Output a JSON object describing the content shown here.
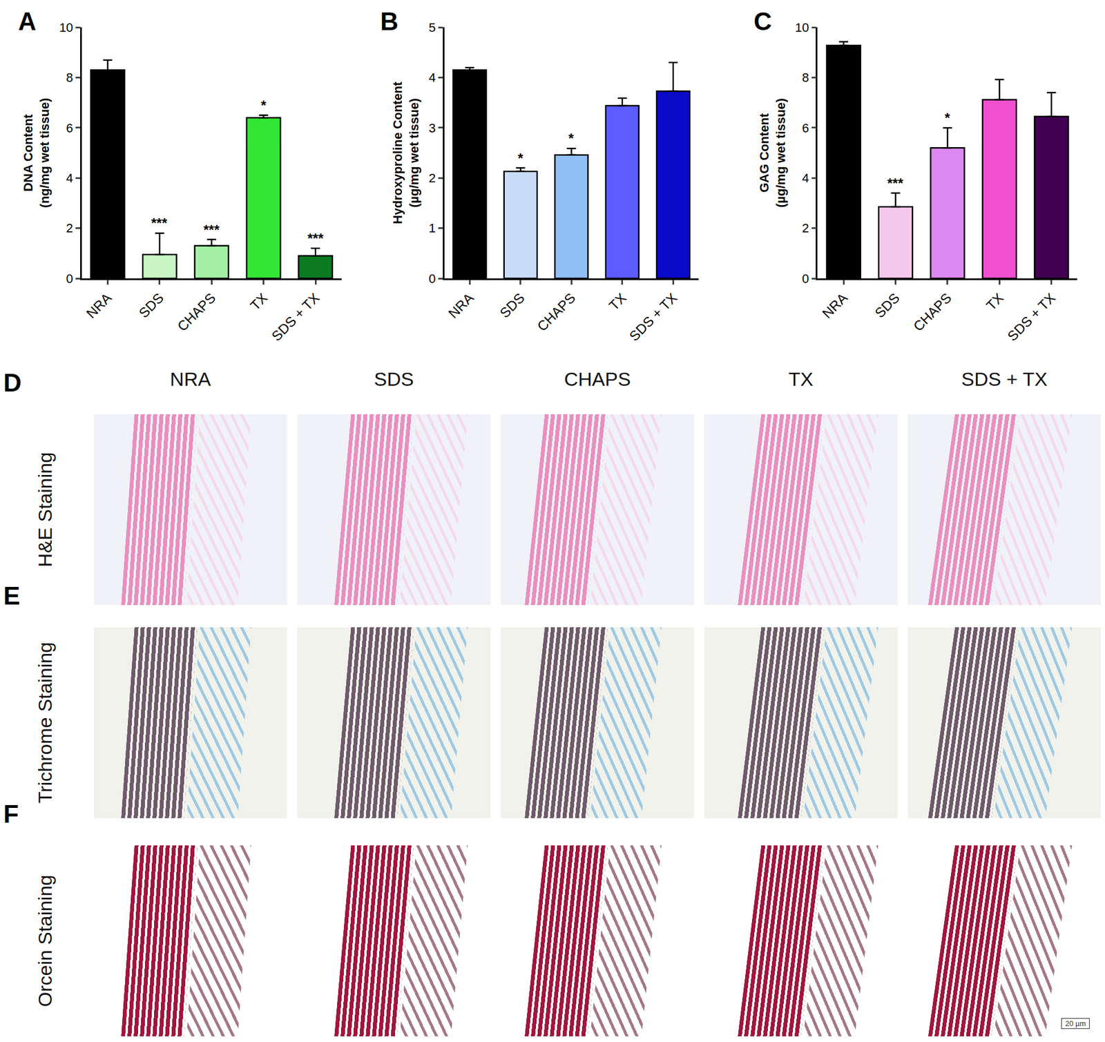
{
  "chart_data": [
    {
      "type": "bar",
      "title": "A",
      "y_label": "DNA Content\n(ng/mg wet tissue)",
      "categories": [
        "NRA",
        "SDS",
        "CHAPS",
        "TX",
        "SDS + TX"
      ],
      "values": [
        8.3,
        0.95,
        1.3,
        6.4,
        0.9
      ],
      "errors": [
        0.4,
        0.85,
        0.25,
        0.1,
        0.3
      ],
      "colors": [
        "#000000",
        "#c9f5c4",
        "#a3efa3",
        "#33e633",
        "#0b7a20"
      ],
      "annotations": [
        {
          "category": "SDS",
          "text": "***"
        },
        {
          "category": "CHAPS",
          "text": "***"
        },
        {
          "category": "TX",
          "text": "*"
        },
        {
          "category": "SDS + TX",
          "text": "***"
        }
      ],
      "ylim": [
        0,
        10
      ],
      "yticks": [
        0,
        2,
        4,
        6,
        8,
        10
      ],
      "grid": false
    },
    {
      "type": "bar",
      "title": "B",
      "y_label": "Hydroxyproline Content\n(µg/mg wet tissue)",
      "categories": [
        "NRA",
        "SDS",
        "CHAPS",
        "TX",
        "SDS + TX"
      ],
      "values": [
        4.15,
        2.13,
        2.46,
        3.44,
        3.73
      ],
      "errors": [
        0.05,
        0.07,
        0.13,
        0.15,
        0.57
      ],
      "colors": [
        "#000000",
        "#c8dcf7",
        "#8fbff5",
        "#5c5cff",
        "#0a0ac8"
      ],
      "annotations": [
        {
          "category": "SDS",
          "text": "*"
        },
        {
          "category": "CHAPS",
          "text": "*"
        }
      ],
      "ylim": [
        0,
        5
      ],
      "yticks": [
        0,
        1,
        2,
        3,
        4,
        5
      ],
      "grid": false
    },
    {
      "type": "bar",
      "title": "C",
      "y_label": "GAG Content\n(µg/mg wet tissue)",
      "categories": [
        "NRA",
        "SDS",
        "CHAPS",
        "TX",
        "SDS + TX"
      ],
      "values": [
        9.28,
        2.85,
        5.2,
        7.12,
        6.45
      ],
      "errors": [
        0.15,
        0.55,
        0.8,
        0.8,
        0.95
      ],
      "colors": [
        "#000000",
        "#f7c8ee",
        "#dc88f0",
        "#f050d0",
        "#420052"
      ],
      "annotations": [
        {
          "category": "SDS",
          "text": "***"
        },
        {
          "category": "CHAPS",
          "text": "*"
        }
      ],
      "ylim": [
        0,
        10
      ],
      "yticks": [
        0,
        2,
        4,
        6,
        8,
        10
      ],
      "grid": false
    }
  ],
  "histology": {
    "columns": [
      "NRA",
      "SDS",
      "CHAPS",
      "TX",
      "SDS + TX"
    ],
    "rows": [
      {
        "letter": "D",
        "label": "H&E Staining"
      },
      {
        "letter": "E",
        "label": "Trichrome Staining"
      },
      {
        "letter": "F",
        "label": "Orcein Staining"
      }
    ],
    "scale_bar": "20 µm"
  }
}
